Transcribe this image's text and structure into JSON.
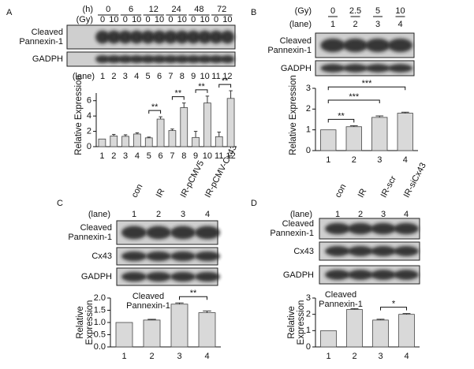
{
  "panels": [
    {
      "label": "A",
      "headers": [
        {
          "name": "(h)",
          "values": [
            "0",
            "6",
            "12",
            "24",
            "48",
            "72"
          ]
        },
        {
          "name": "(Gy)",
          "values": [
            "0",
            "10",
            "0",
            "10",
            "0",
            "10",
            "0",
            "10",
            "0",
            "10",
            "0",
            "10"
          ]
        }
      ],
      "blots": [
        "Cleaved Pannexin-1",
        "GADPH"
      ],
      "lane_label": "(lane)",
      "lanes": [
        "1",
        "2",
        "3",
        "4",
        "5",
        "6",
        "7",
        "8",
        "9",
        "10",
        "11",
        "12"
      ]
    },
    {
      "label": "B",
      "headers": [
        {
          "name": "(Gy)",
          "values": [
            "0",
            "2.5",
            "5",
            "10"
          ]
        }
      ],
      "blots": [
        "Cleaved Pannexin-1",
        "GADPH"
      ],
      "lane_label": "(lane)",
      "lanes": [
        "1",
        "2",
        "3",
        "4"
      ]
    },
    {
      "label": "C",
      "conditions": [
        "con",
        "IR",
        "IR-pCMV5",
        "IR-pCMV-Cx43"
      ],
      "blots": [
        "Cleaved Pannexin-1",
        "Cx43",
        "GADPH"
      ],
      "lane_label": "(lane)",
      "lanes": [
        "1",
        "2",
        "3",
        "4"
      ]
    },
    {
      "label": "D",
      "conditions": [
        "con",
        "IR",
        "IR-scr",
        "IR-siCx43"
      ],
      "blots": [
        "Cleaved Pannexin-1",
        "Cx43",
        "GADPH"
      ],
      "lane_label": "(lane)",
      "lanes": [
        "1",
        "2",
        "3",
        "4"
      ]
    }
  ],
  "chart_data": [
    {
      "type": "bar",
      "ylabel": "Relative Expression",
      "categories": [
        "1",
        "2",
        "3",
        "4",
        "5",
        "6",
        "7",
        "8",
        "9",
        "10",
        "11",
        "12"
      ],
      "values": [
        1.0,
        1.4,
        1.35,
        1.65,
        1.15,
        3.6,
        2.1,
        5.1,
        1.2,
        5.7,
        1.3,
        6.3
      ],
      "errors": [
        0,
        0.2,
        0.2,
        0.15,
        0.1,
        0.3,
        0.2,
        0.6,
        0.8,
        0.9,
        0.6,
        1.0
      ],
      "color": "#d9d9d9",
      "ylim": [
        0,
        7
      ],
      "yticks": [
        0,
        2,
        4,
        6
      ],
      "annotations": [
        {
          "text": "**",
          "between": [
            "5",
            "6"
          ]
        },
        {
          "text": "**",
          "between": [
            "7",
            "8"
          ]
        },
        {
          "text": "**",
          "between": [
            "9",
            "10"
          ]
        },
        {
          "text": "**",
          "between": [
            "11",
            "12"
          ]
        }
      ]
    },
    {
      "type": "bar",
      "ylabel": "Relative Expression",
      "categories": [
        "1",
        "2",
        "3",
        "4"
      ],
      "values": [
        1.0,
        1.15,
        1.6,
        1.8
      ],
      "errors": [
        0,
        0.05,
        0.07,
        0.05
      ],
      "color": "#d9d9d9",
      "ylim": [
        0,
        3
      ],
      "yticks": [
        0,
        1,
        2,
        3
      ],
      "annotations": [
        {
          "text": "**",
          "between": [
            "1",
            "2"
          ]
        },
        {
          "text": "***",
          "between": [
            "1",
            "3"
          ]
        },
        {
          "text": "***",
          "between": [
            "1",
            "4"
          ]
        }
      ]
    },
    {
      "type": "bar",
      "title": "Cleaved Pannexin-1",
      "ylabel": "Relative Expression",
      "categories": [
        "1",
        "2",
        "3",
        "4"
      ],
      "values": [
        1.0,
        1.1,
        1.75,
        1.4
      ],
      "errors": [
        0,
        0.03,
        0.05,
        0.07
      ],
      "color": "#d9d9d9",
      "ylim": [
        0,
        2
      ],
      "yticks": [
        {
          "value": 0,
          "label": "0.0"
        },
        {
          "value": 0.5,
          "label": "0.5"
        },
        {
          "value": 1,
          "label": "1.0"
        },
        {
          "value": 1.5,
          "label": "1.5"
        },
        {
          "value": 2,
          "label": "2.0"
        }
      ],
      "annotations": [
        {
          "text": "**",
          "between": [
            "3",
            "4"
          ]
        }
      ]
    },
    {
      "type": "bar",
      "title": "Cleaved Pannexin-1",
      "ylabel": "Relative Expression",
      "categories": [
        "1",
        "2",
        "3",
        "4"
      ],
      "values": [
        1.0,
        2.3,
        1.65,
        2.0
      ],
      "errors": [
        0,
        0.05,
        0.05,
        0.05
      ],
      "color": "#d9d9d9",
      "ylim": [
        0,
        3
      ],
      "yticks": [
        0,
        1,
        2,
        3
      ],
      "annotations": [
        {
          "text": "*",
          "between": [
            "3",
            "4"
          ]
        }
      ]
    }
  ]
}
